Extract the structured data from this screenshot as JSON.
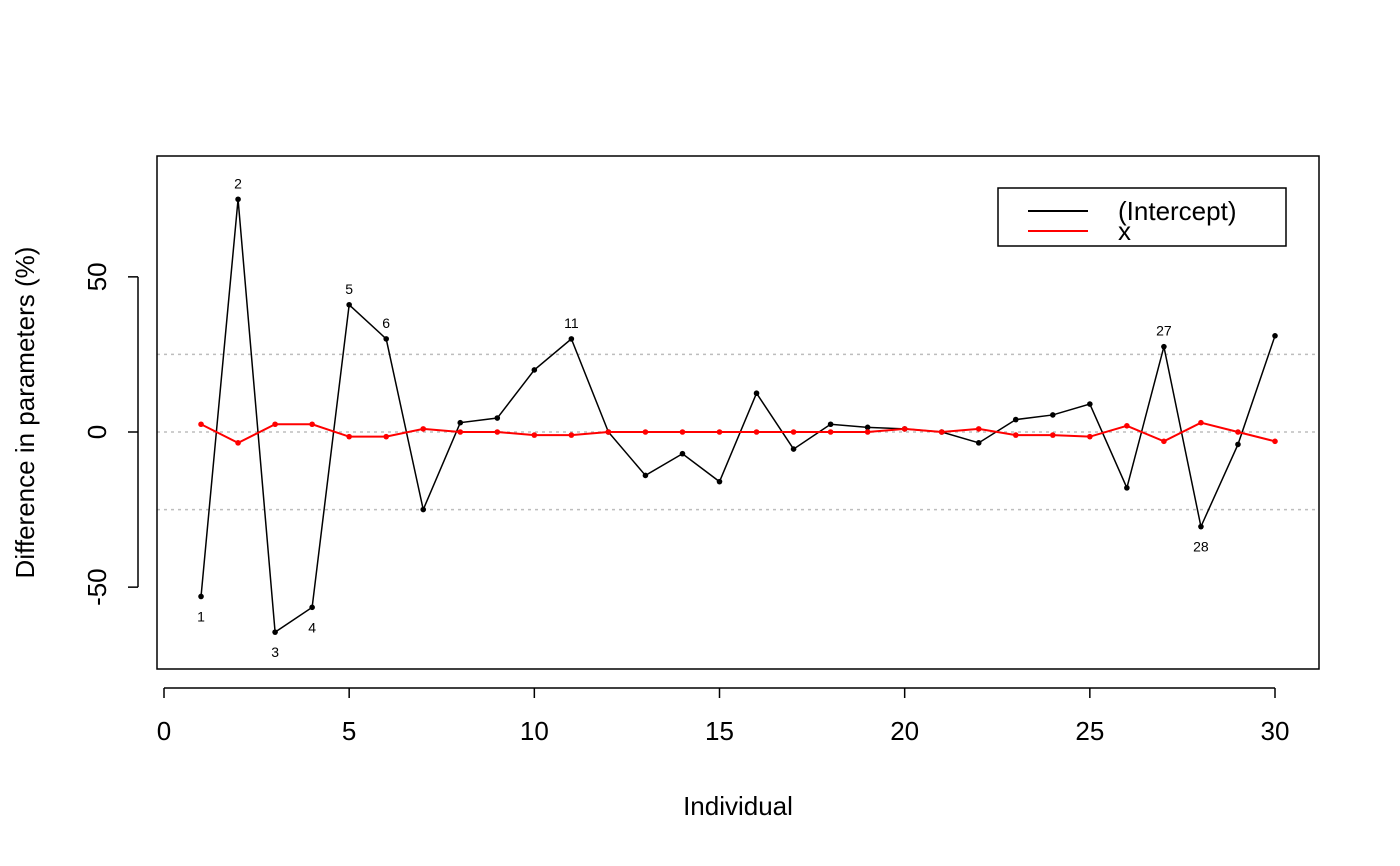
{
  "chart_data": {
    "type": "line",
    "title": "",
    "xlabel": "Individual",
    "ylabel": "Difference in parameters (%)",
    "xlim": [
      0,
      30
    ],
    "ylim": [
      -75,
      85
    ],
    "x_ticks": [
      0,
      5,
      10,
      15,
      20,
      25,
      30
    ],
    "y_ticks": [
      -50,
      0,
      50
    ],
    "reference_lines": [
      -25,
      0,
      25
    ],
    "grid": false,
    "legend_position": "top-right",
    "x": [
      1,
      2,
      3,
      4,
      5,
      6,
      7,
      8,
      9,
      10,
      11,
      12,
      13,
      14,
      15,
      16,
      17,
      18,
      19,
      20,
      21,
      22,
      23,
      24,
      25,
      26,
      27,
      28,
      29,
      30
    ],
    "series": [
      {
        "name": "(Intercept)",
        "color": "#000000",
        "values": [
          -53,
          75,
          -64.5,
          -56.5,
          41,
          30,
          -25,
          3,
          4.5,
          20,
          30,
          0,
          -14,
          -7,
          -16,
          12.5,
          -5.5,
          2.5,
          1.5,
          1,
          0,
          -3.5,
          4,
          5.5,
          9,
          -18,
          27.5,
          -30.5,
          -4,
          31
        ]
      },
      {
        "name": "x",
        "color": "#ff0000",
        "values": [
          2.5,
          -3.5,
          2.5,
          2.5,
          -1.5,
          -1.5,
          1,
          0,
          0,
          -1,
          -1,
          0,
          0,
          0,
          0,
          0,
          0,
          0,
          0,
          1,
          0,
          1,
          -1,
          -1,
          -1.5,
          2,
          -3,
          3,
          0,
          -3
        ]
      }
    ],
    "point_labels": [
      {
        "x": 1,
        "text": "1",
        "side": "below"
      },
      {
        "x": 2,
        "text": "2",
        "side": "above"
      },
      {
        "x": 3,
        "text": "3",
        "side": "below"
      },
      {
        "x": 4,
        "text": "4",
        "side": "below"
      },
      {
        "x": 5,
        "text": "5",
        "side": "above"
      },
      {
        "x": 6,
        "text": "6",
        "side": "above"
      },
      {
        "x": 11,
        "text": "11",
        "side": "above"
      },
      {
        "x": 27,
        "text": "27",
        "side": "above"
      },
      {
        "x": 28,
        "text": "28",
        "side": "below"
      }
    ]
  }
}
